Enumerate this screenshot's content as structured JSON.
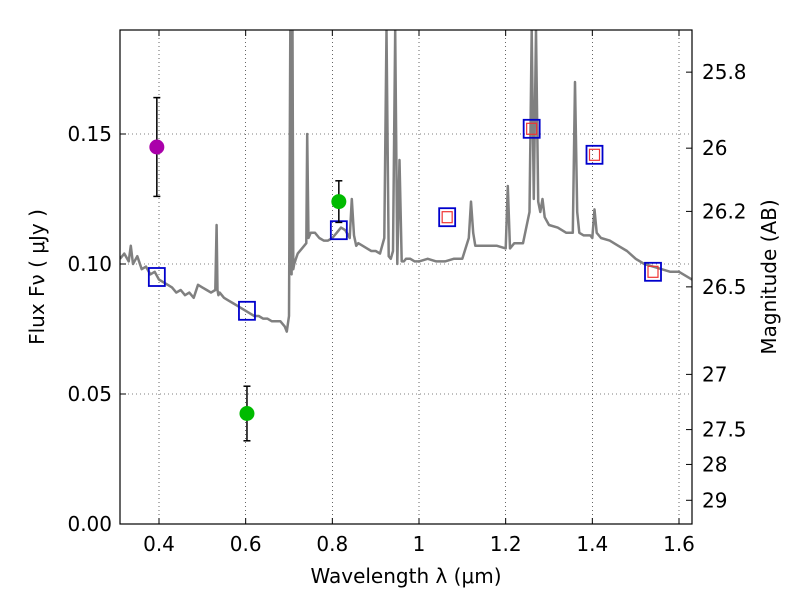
{
  "chart_data": {
    "type": "scatter",
    "title": "",
    "xlabel": "Wavelength  λ (μm)",
    "ylabel": "Flux  Fν  ( μJy )",
    "y2label": "Magnitude (AB)",
    "xlim": [
      0.31,
      1.63
    ],
    "ylim": [
      0.0,
      0.19
    ],
    "grid": true,
    "x_ticks": [
      0.4,
      0.6,
      0.8,
      1.0,
      1.2,
      1.4,
      1.6
    ],
    "x_tick_labels": [
      "0.4",
      "0.6",
      "0.8",
      "1",
      "1.2",
      "1.4",
      "1.6"
    ],
    "y_ticks": [
      0.0,
      0.05,
      0.1,
      0.15
    ],
    "y_tick_labels": [
      "0.00",
      "0.05",
      "0.10",
      "0.15"
    ],
    "mag_ticks": [
      25.8,
      26,
      26.2,
      26.5,
      27,
      27.5,
      28,
      29
    ],
    "mag_tick_labels": [
      "25.8",
      "26",
      "26.2",
      "26.5",
      "27",
      "27.5",
      "28",
      "29"
    ],
    "colors": {
      "model": "#808080",
      "observed_optical": "#aa00aa",
      "observed": "#00bb00",
      "model_photometry": "#0000cc",
      "model_inner": "#ee3333",
      "error_bar": "#000000"
    },
    "series": [
      {
        "name": "model-spectrum",
        "kind": "line",
        "x": [
          0.31,
          0.32,
          0.33,
          0.335,
          0.34,
          0.35,
          0.36,
          0.37,
          0.38,
          0.39,
          0.4,
          0.41,
          0.42,
          0.43,
          0.44,
          0.45,
          0.46,
          0.47,
          0.48,
          0.49,
          0.5,
          0.51,
          0.52,
          0.53,
          0.533,
          0.535,
          0.537,
          0.54,
          0.55,
          0.56,
          0.57,
          0.58,
          0.59,
          0.6,
          0.61,
          0.62,
          0.63,
          0.64,
          0.65,
          0.66,
          0.67,
          0.68,
          0.69,
          0.695,
          0.7,
          0.703,
          0.706,
          0.708,
          0.71,
          0.712,
          0.714,
          0.716,
          0.72,
          0.73,
          0.74,
          0.742,
          0.745,
          0.75,
          0.76,
          0.77,
          0.78,
          0.79,
          0.8,
          0.81,
          0.82,
          0.83,
          0.84,
          0.845,
          0.85,
          0.855,
          0.86,
          0.87,
          0.88,
          0.89,
          0.9,
          0.91,
          0.92,
          0.925,
          0.93,
          0.935,
          0.94,
          0.945,
          0.95,
          0.955,
          0.96,
          0.965,
          0.97,
          0.98,
          0.99,
          1.0,
          1.02,
          1.04,
          1.06,
          1.08,
          1.1,
          1.115,
          1.12,
          1.125,
          1.13,
          1.15,
          1.18,
          1.2,
          1.205,
          1.21,
          1.22,
          1.24,
          1.255,
          1.26,
          1.265,
          1.27,
          1.275,
          1.28,
          1.285,
          1.29,
          1.3,
          1.32,
          1.34,
          1.355,
          1.36,
          1.365,
          1.37,
          1.38,
          1.395,
          1.4,
          1.405,
          1.41,
          1.42,
          1.44,
          1.46,
          1.48,
          1.5,
          1.52,
          1.54,
          1.56,
          1.58,
          1.6,
          1.63
        ],
        "y": [
          0.102,
          0.104,
          0.101,
          0.107,
          0.1,
          0.103,
          0.098,
          0.099,
          0.096,
          0.097,
          0.094,
          0.093,
          0.092,
          0.091,
          0.089,
          0.09,
          0.088,
          0.089,
          0.087,
          0.092,
          0.091,
          0.09,
          0.089,
          0.09,
          0.115,
          0.09,
          0.088,
          0.089,
          0.087,
          0.086,
          0.085,
          0.084,
          0.083,
          0.082,
          0.081,
          0.08,
          0.08,
          0.079,
          0.079,
          0.078,
          0.078,
          0.078,
          0.076,
          0.074,
          0.08,
          0.19,
          0.096,
          0.19,
          0.098,
          0.1,
          0.101,
          0.102,
          0.104,
          0.106,
          0.108,
          0.15,
          0.11,
          0.112,
          0.112,
          0.11,
          0.109,
          0.109,
          0.11,
          0.112,
          0.114,
          0.113,
          0.11,
          0.125,
          0.111,
          0.107,
          0.108,
          0.107,
          0.106,
          0.105,
          0.105,
          0.104,
          0.11,
          0.19,
          0.103,
          0.102,
          0.105,
          0.19,
          0.1,
          0.14,
          0.101,
          0.101,
          0.102,
          0.102,
          0.101,
          0.101,
          0.102,
          0.101,
          0.101,
          0.102,
          0.102,
          0.11,
          0.124,
          0.112,
          0.107,
          0.107,
          0.107,
          0.106,
          0.13,
          0.106,
          0.108,
          0.108,
          0.12,
          0.19,
          0.125,
          0.19,
          0.124,
          0.12,
          0.125,
          0.118,
          0.115,
          0.114,
          0.112,
          0.112,
          0.17,
          0.12,
          0.112,
          0.111,
          0.111,
          0.11,
          0.121,
          0.112,
          0.11,
          0.109,
          0.107,
          0.105,
          0.102,
          0.1,
          0.099,
          0.098,
          0.097,
          0.097,
          0.094
        ]
      },
      {
        "name": "observed-optical",
        "kind": "point",
        "points": [
          {
            "x": 0.395,
            "y": 0.145,
            "err": 0.019
          }
        ]
      },
      {
        "name": "observed",
        "kind": "point",
        "points": [
          {
            "x": 0.603,
            "y": 0.0425,
            "err": 0.0105
          },
          {
            "x": 0.815,
            "y": 0.124,
            "err": 0.008
          }
        ]
      },
      {
        "name": "model-photometry",
        "kind": "square",
        "points": [
          {
            "x": 0.395,
            "y": 0.095,
            "inner": false
          },
          {
            "x": 0.603,
            "y": 0.082,
            "inner": false
          },
          {
            "x": 0.815,
            "y": 0.113,
            "inner": false
          },
          {
            "x": 1.065,
            "y": 0.118,
            "inner": true
          },
          {
            "x": 1.26,
            "y": 0.152,
            "inner": true
          },
          {
            "x": 1.405,
            "y": 0.142,
            "inner": true
          },
          {
            "x": 1.54,
            "y": 0.097,
            "inner": true
          }
        ]
      }
    ]
  }
}
